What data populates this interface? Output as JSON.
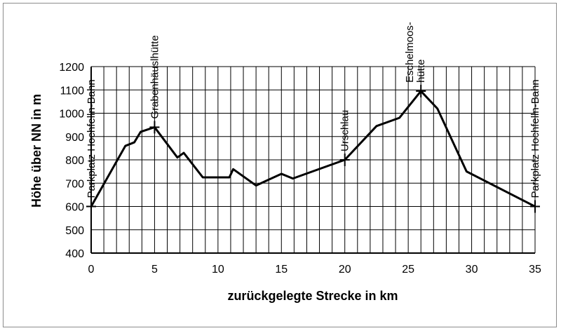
{
  "chart_data": {
    "type": "line",
    "xlabel": "zurückgelegte Strecke in km",
    "ylabel": "Höhe über NN in m",
    "xlim": [
      0,
      35
    ],
    "ylim": [
      400,
      1200
    ],
    "x_ticks": [
      0,
      5,
      10,
      15,
      20,
      25,
      30,
      35
    ],
    "y_ticks": [
      400,
      500,
      600,
      700,
      800,
      900,
      1000,
      1100,
      1200
    ],
    "x_grid_step": 1,
    "y_grid_step": 100,
    "grid": true,
    "legend": "none",
    "line_color": "#000000",
    "series": [
      {
        "x": [
          0,
          2.7,
          3.4,
          3.9,
          5,
          6.8,
          7.3,
          8.8,
          10.0,
          10.9,
          11.2,
          13.0,
          15.0,
          15.9,
          20,
          22.5,
          24.3,
          26,
          27.3,
          29.6,
          35
        ],
        "values": [
          600,
          860,
          875,
          920,
          940,
          810,
          830,
          725,
          725,
          725,
          760,
          690,
          740,
          720,
          800,
          945,
          980,
          1095,
          1020,
          750,
          600
        ]
      }
    ],
    "annotations": [
      {
        "x": 0,
        "y": 600,
        "lines": [
          "Parkplatz Hochfelln-Bahn"
        ]
      },
      {
        "x": 5,
        "y": 940,
        "lines": [
          "Grabenhäuslhütte"
        ]
      },
      {
        "x": 20,
        "y": 800,
        "lines": [
          "Urschlau"
        ]
      },
      {
        "x": 26,
        "y": 1095,
        "lines": [
          "Eschelmoos-",
          "hütte"
        ]
      },
      {
        "x": 35,
        "y": 600,
        "lines": [
          "Parkplatz Hochfelln-Bahn"
        ]
      }
    ]
  }
}
